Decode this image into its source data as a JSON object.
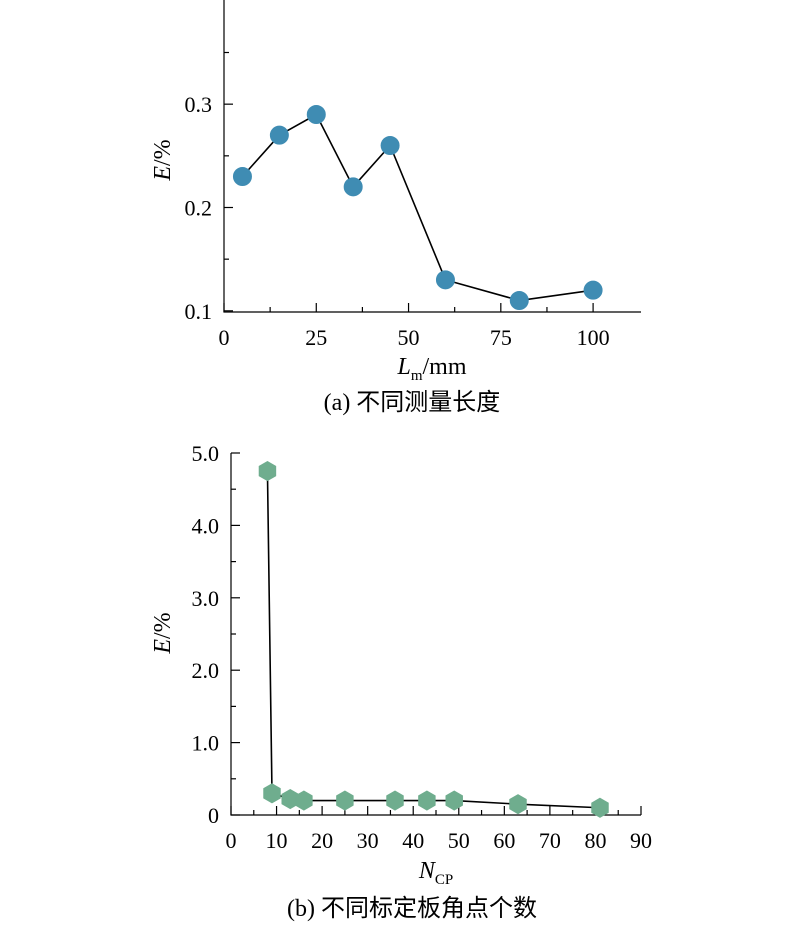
{
  "chart_data": [
    {
      "type": "line",
      "caption": "(a) 不同测量长度",
      "xlabel": {
        "main": "L",
        "sub": "m",
        "suffix": "/mm"
      },
      "ylabel": {
        "main": "E",
        "suffix": "/%"
      },
      "xlim": [
        0,
        110
      ],
      "ylim": [
        0.05,
        0.35
      ],
      "xticks": [
        0,
        25,
        50,
        75,
        100
      ],
      "xtick_labels": [
        "0",
        "25",
        "50",
        "75",
        "100"
      ],
      "yticks": [
        0.1,
        0.2,
        0.3
      ],
      "ytick_labels": [
        "0.1",
        "0.2",
        "0.3"
      ],
      "marker": "circle",
      "marker_color": "#3f8cb3",
      "x": [
        5,
        15,
        25,
        35,
        45,
        60,
        80,
        100
      ],
      "y": [
        0.23,
        0.27,
        0.29,
        0.22,
        0.26,
        0.13,
        0.11,
        0.12
      ]
    },
    {
      "type": "line",
      "caption": "(b) 不同标定板角点个数",
      "xlabel": {
        "main": "N",
        "sub": "CP",
        "suffix": ""
      },
      "ylabel": {
        "main": "E",
        "suffix": "/%"
      },
      "xlim": [
        0,
        90
      ],
      "ylim": [
        0,
        5.0
      ],
      "xticks": [
        0,
        10,
        20,
        30,
        40,
        50,
        60,
        70,
        80,
        90
      ],
      "xtick_labels": [
        "0",
        "10",
        "20",
        "30",
        "40",
        "50",
        "60",
        "70",
        "80",
        "90"
      ],
      "yticks": [
        0,
        1.0,
        2.0,
        3.0,
        4.0,
        5.0
      ],
      "ytick_labels": [
        "0",
        "1.0",
        "2.0",
        "3.0",
        "4.0",
        "5.0"
      ],
      "marker": "hexagon",
      "marker_color": "#6fad8e",
      "x": [
        8,
        9,
        13,
        16,
        25,
        36,
        43,
        49,
        63,
        81
      ],
      "y": [
        4.75,
        0.3,
        0.22,
        0.2,
        0.2,
        0.2,
        0.2,
        0.2,
        0.15,
        0.1
      ]
    }
  ]
}
